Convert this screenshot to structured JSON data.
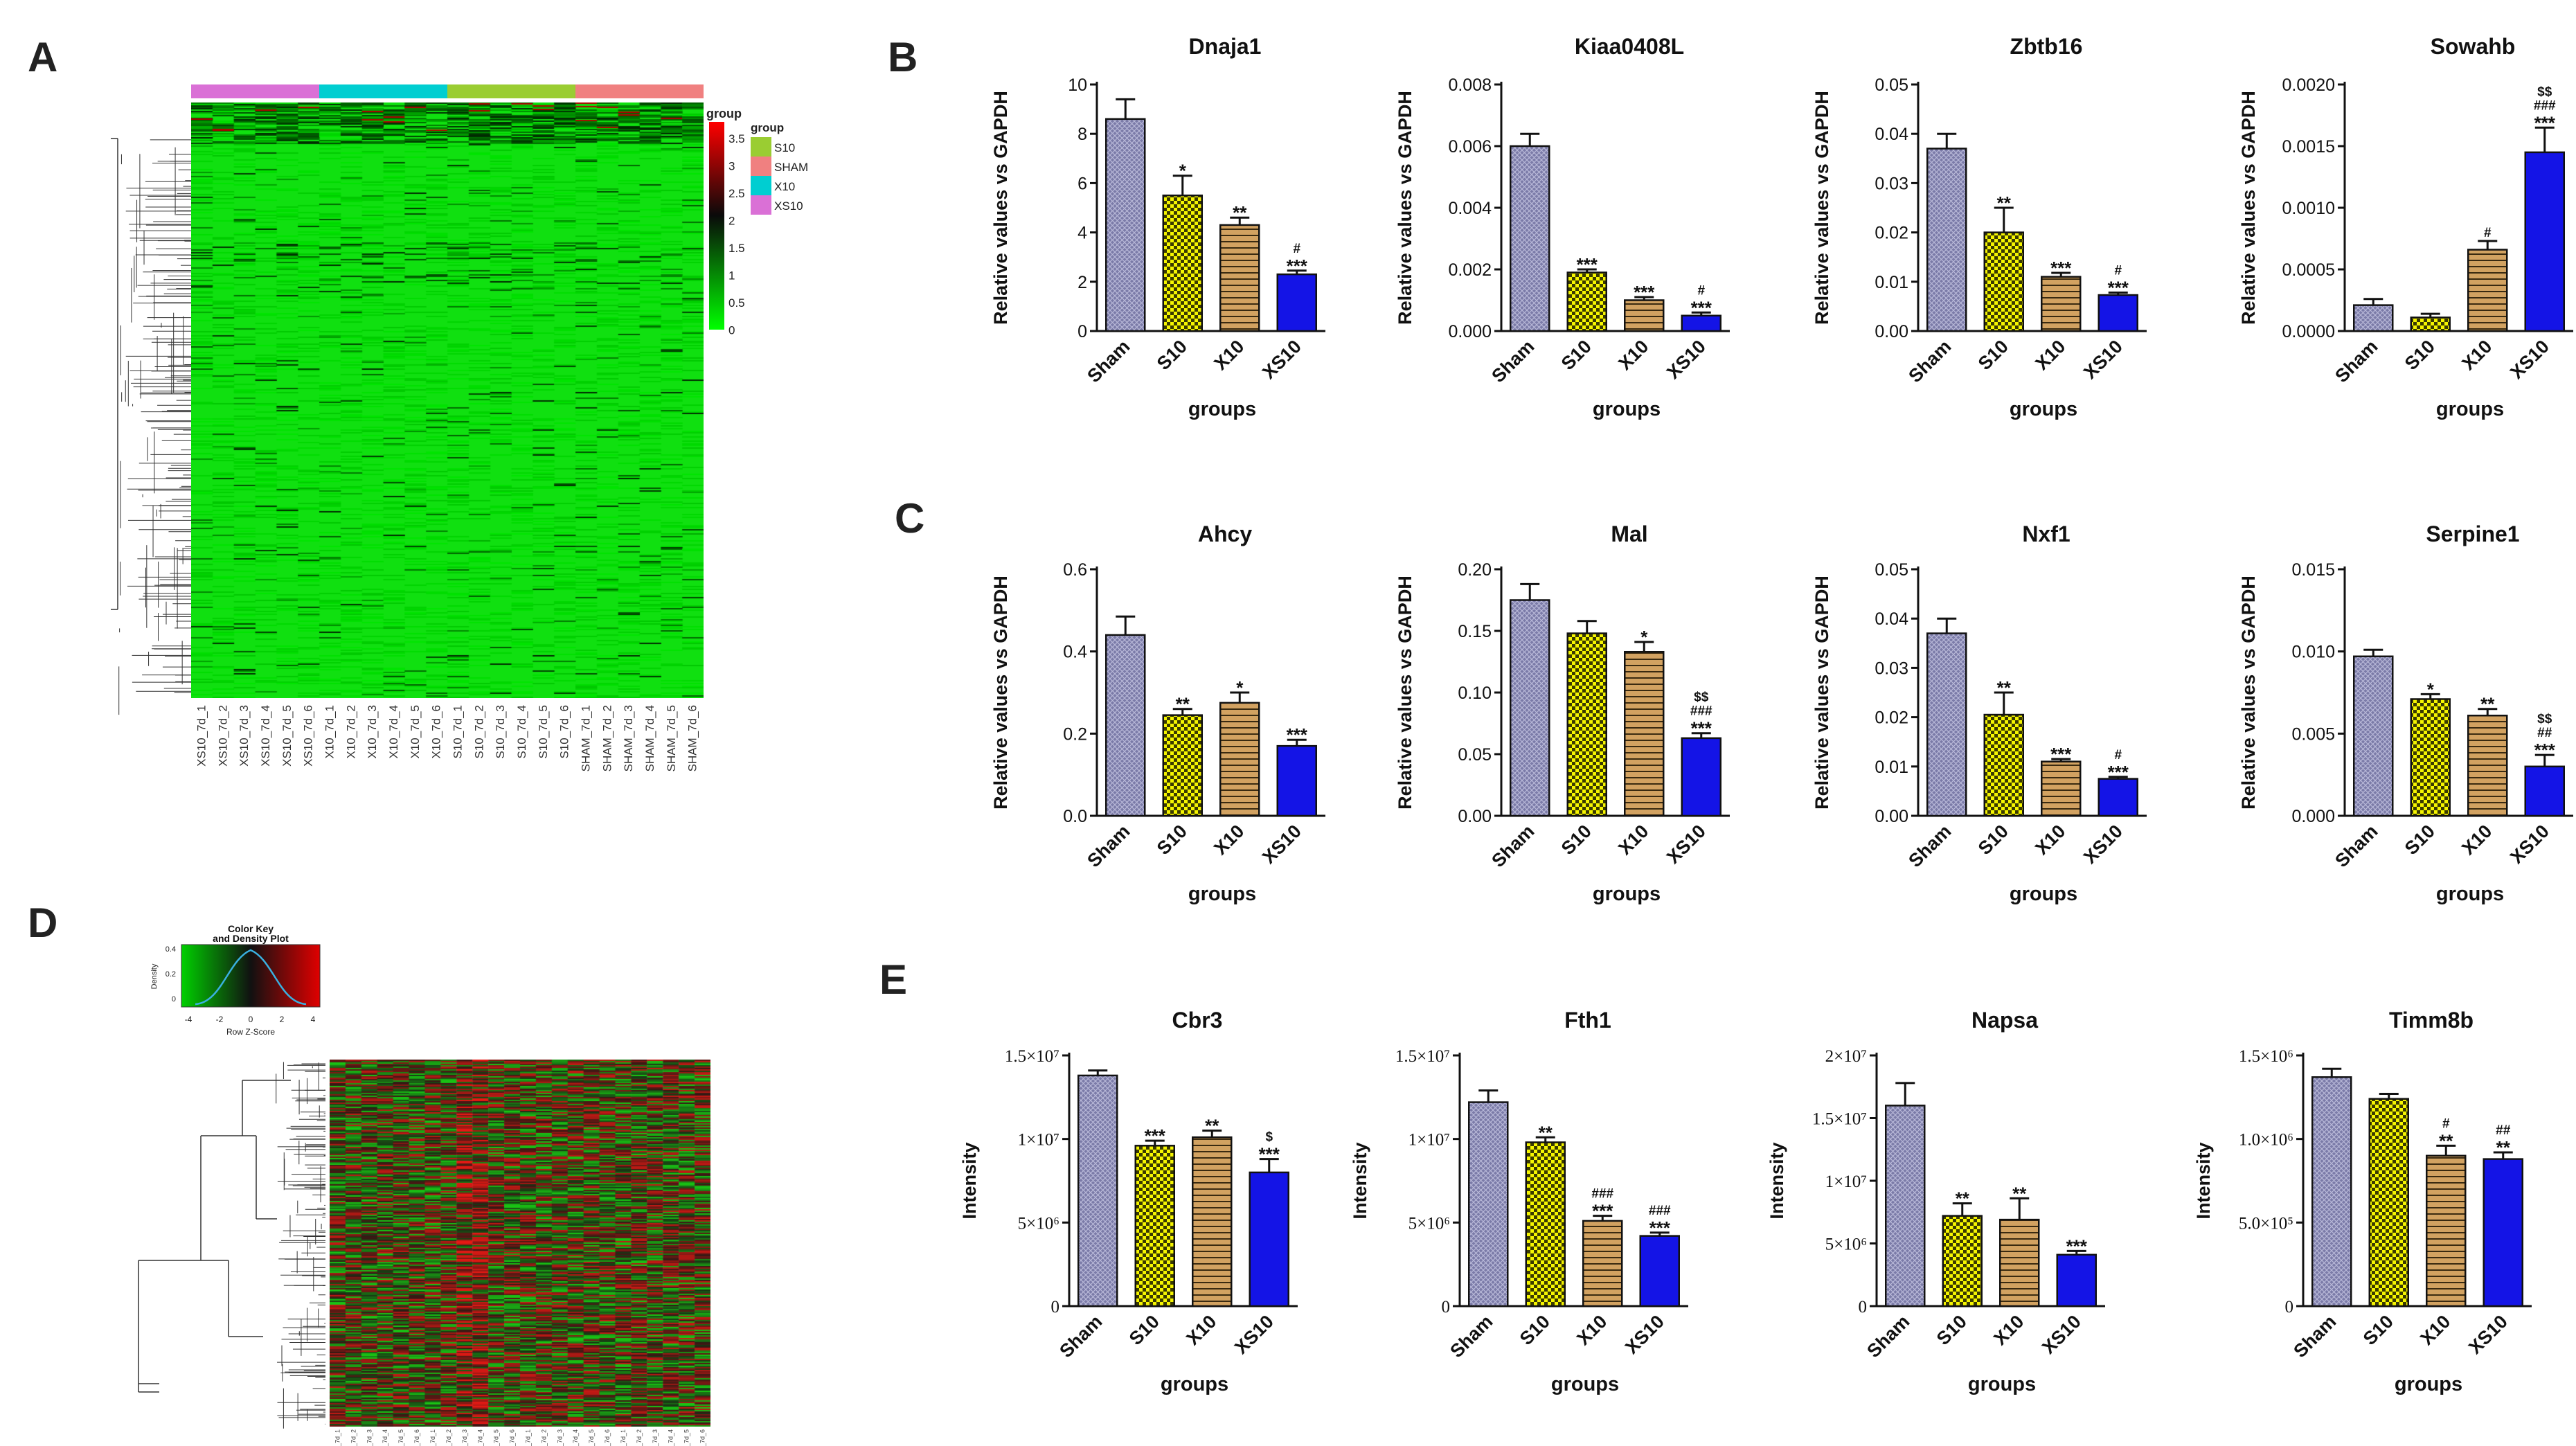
{
  "panels": {
    "A": "A",
    "B": "B",
    "C": "C",
    "D": "D",
    "E": "E"
  },
  "heatmap_a": {
    "legend_title": "group",
    "groups": [
      {
        "name": "S10",
        "color": "#9ACD32"
      },
      {
        "name": "SHAM",
        "color": "#F08080"
      },
      {
        "name": "X10",
        "color": "#00CED1"
      },
      {
        "name": "XS10",
        "color": "#DA70D6"
      }
    ],
    "top_bar_order": [
      "XS10",
      "X10",
      "S10",
      "SHAM"
    ],
    "scale_ticks": [
      "3.5",
      "3",
      "2.5",
      "2",
      "1.5",
      "1",
      "0.5",
      "0"
    ],
    "sample_labels": [
      "XS10_7d_1",
      "XS10_7d_2",
      "XS10_7d_3",
      "XS10_7d_4",
      "XS10_7d_5",
      "XS10_7d_6",
      "X10_7d_1",
      "X10_7d_2",
      "X10_7d_3",
      "X10_7d_4",
      "X10_7d_5",
      "X10_7d_6",
      "S10_7d_1",
      "S10_7d_2",
      "S10_7d_3",
      "S10_7d_4",
      "S10_7d_5",
      "S10_7d_6",
      "SHAM_7d_1",
      "SHAM_7d_2",
      "SHAM_7d_3",
      "SHAM_7d_4",
      "SHAM_7d_5",
      "SHAM_7d_6"
    ],
    "colors": {
      "low": "#00E000",
      "mid": "#101010",
      "high": "#E00000"
    }
  },
  "heatmap_d": {
    "key_title_1": "Color Key",
    "key_title_2": "and Density Plot",
    "key_xlabel": "Row Z-Score",
    "key_ylabel": "Density",
    "key_x_ticks": [
      "-4",
      "-2",
      "0",
      "2",
      "4"
    ],
    "key_y_ticks": [
      "0.4",
      "0.2",
      "0"
    ],
    "sample_labels": [
      "S10_7d_1",
      "S10_7d_2",
      "S10_7d_3",
      "S10_7d_4",
      "S10_7d_5",
      "S10_7d_6",
      "SHAM_7d_1",
      "SHAM_7d_2",
      "SHAM_7d_3",
      "SHAM_7d_4",
      "SHAM_7d_5",
      "SHAM_7d_6",
      "X10_7d_1",
      "X10_7d_2",
      "X10_7d_3",
      "X10_7d_4",
      "X10_7d_5",
      "X10_7d_6",
      "XS10_7d_1",
      "XS10_7d_2",
      "XS10_7d_3",
      "XS10_7d_4",
      "XS10_7d_5",
      "XS10_7d_6"
    ]
  },
  "chart_data": [
    {
      "panel": "B",
      "type": "bar",
      "title": "Dnaja1",
      "categories": [
        "Sham",
        "S10",
        "X10",
        "XS10"
      ],
      "values": [
        8.6,
        5.5,
        4.3,
        2.3
      ],
      "errors": [
        0.8,
        0.8,
        0.3,
        0.15
      ],
      "ylim": [
        0,
        10
      ],
      "yticks": [
        "0",
        "2",
        "4",
        "6",
        "8",
        "10"
      ],
      "ylabel": "Relative values vs GAPDH",
      "xlabel": "groups",
      "annotations": [
        [],
        [
          "*"
        ],
        [
          "**"
        ],
        [
          "***",
          "#"
        ]
      ]
    },
    {
      "panel": "B",
      "type": "bar",
      "title": "Kiaa0408L",
      "categories": [
        "Sham",
        "S10",
        "X10",
        "XS10"
      ],
      "values": [
        0.006,
        0.0019,
        0.001,
        0.0005
      ],
      "errors": [
        0.0004,
        0.0001,
        0.0001,
        0.0001
      ],
      "ylim": [
        0,
        0.008
      ],
      "yticks": [
        "0.000",
        "0.002",
        "0.004",
        "0.006",
        "0.008"
      ],
      "ylabel": "Relative values vs GAPDH",
      "xlabel": "groups",
      "annotations": [
        [],
        [
          "***"
        ],
        [
          "***"
        ],
        [
          "***",
          "#"
        ]
      ]
    },
    {
      "panel": "B",
      "type": "bar",
      "title": "Zbtb16",
      "categories": [
        "Sham",
        "S10",
        "X10",
        "XS10"
      ],
      "values": [
        0.037,
        0.02,
        0.011,
        0.0073
      ],
      "errors": [
        0.003,
        0.005,
        0.0008,
        0.0005
      ],
      "ylim": [
        0,
        0.05
      ],
      "yticks": [
        "0.00",
        "0.01",
        "0.02",
        "0.03",
        "0.04",
        "0.05"
      ],
      "ylabel": "Relative values vs GAPDH",
      "xlabel": "groups",
      "annotations": [
        [],
        [
          "**"
        ],
        [
          "***"
        ],
        [
          "***",
          "#"
        ]
      ]
    },
    {
      "panel": "B",
      "type": "bar",
      "title": "Sowahb",
      "categories": [
        "Sham",
        "S10",
        "X10",
        "XS10"
      ],
      "values": [
        0.00021,
        0.00011,
        0.00066,
        0.00145
      ],
      "errors": [
        5e-05,
        3e-05,
        7e-05,
        0.0002
      ],
      "ylim": [
        0,
        0.002
      ],
      "yticks": [
        "0.0000",
        "0.0005",
        "0.0010",
        "0.0015",
        "0.0020"
      ],
      "ylabel": "Relative values vs GAPDH",
      "xlabel": "groups",
      "annotations": [
        [],
        [],
        [
          "#"
        ],
        [
          "***",
          "###",
          "$$"
        ]
      ]
    },
    {
      "panel": "C",
      "type": "bar",
      "title": "Ahcy",
      "categories": [
        "Sham",
        "S10",
        "X10",
        "XS10"
      ],
      "values": [
        0.44,
        0.245,
        0.275,
        0.17
      ],
      "errors": [
        0.045,
        0.015,
        0.025,
        0.015
      ],
      "ylim": [
        0,
        0.6
      ],
      "yticks": [
        "0.0",
        "0.2",
        "0.4",
        "0.6"
      ],
      "ylabel": "Relative values vs GAPDH",
      "xlabel": "groups",
      "annotations": [
        [],
        [
          "**"
        ],
        [
          "*"
        ],
        [
          "***"
        ]
      ]
    },
    {
      "panel": "C",
      "type": "bar",
      "title": "Mal",
      "categories": [
        "Sham",
        "S10",
        "X10",
        "XS10"
      ],
      "values": [
        0.175,
        0.148,
        0.133,
        0.063
      ],
      "errors": [
        0.013,
        0.01,
        0.008,
        0.004
      ],
      "ylim": [
        0,
        0.2
      ],
      "yticks": [
        "0.00",
        "0.05",
        "0.10",
        "0.15",
        "0.20"
      ],
      "ylabel": "Relative values vs GAPDH",
      "xlabel": "groups",
      "annotations": [
        [],
        [],
        [
          "*"
        ],
        [
          "***",
          "###",
          "$$"
        ]
      ]
    },
    {
      "panel": "C",
      "type": "bar",
      "title": "Nxf1",
      "categories": [
        "Sham",
        "S10",
        "X10",
        "XS10"
      ],
      "values": [
        0.037,
        0.0205,
        0.011,
        0.0075
      ],
      "errors": [
        0.003,
        0.0045,
        0.0005,
        0.0004
      ],
      "ylim": [
        0,
        0.05
      ],
      "yticks": [
        "0.00",
        "0.01",
        "0.02",
        "0.03",
        "0.04",
        "0.05"
      ],
      "ylabel": "Relative values vs GAPDH",
      "xlabel": "groups",
      "annotations": [
        [],
        [
          "**"
        ],
        [
          "***"
        ],
        [
          "***",
          "#"
        ]
      ]
    },
    {
      "panel": "C",
      "type": "bar",
      "title": "Serpine1",
      "categories": [
        "Sham",
        "S10",
        "X10",
        "XS10"
      ],
      "values": [
        0.0097,
        0.0071,
        0.0061,
        0.003
      ],
      "errors": [
        0.0004,
        0.0003,
        0.0004,
        0.0007
      ],
      "ylim": [
        0,
        0.015
      ],
      "yticks": [
        "0.000",
        "0.005",
        "0.010",
        "0.015"
      ],
      "ylabel": "Relative values vs GAPDH",
      "xlabel": "groups",
      "annotations": [
        [],
        [
          "*"
        ],
        [
          "**"
        ],
        [
          "***",
          "##",
          "$$"
        ]
      ]
    },
    {
      "panel": "E",
      "type": "bar",
      "title": "Cbr3",
      "categories": [
        "Sham",
        "S10",
        "X10",
        "XS10"
      ],
      "values": [
        13800000,
        9600000,
        10100000,
        8000000
      ],
      "errors": [
        300000,
        300000,
        400000,
        800000
      ],
      "ylim": [
        0,
        15000000
      ],
      "yticks": [
        "0",
        "5×10⁶",
        "1×10⁷",
        "1.5×10⁷"
      ],
      "ytick_values": [
        0,
        5000000,
        10000000,
        15000000
      ],
      "ylabel": "Intensity",
      "xlabel": "groups",
      "annotations": [
        [],
        [
          "***"
        ],
        [
          "**"
        ],
        [
          "***",
          "$"
        ]
      ]
    },
    {
      "panel": "E",
      "type": "bar",
      "title": "Fth1",
      "categories": [
        "Sham",
        "S10",
        "X10",
        "XS10"
      ],
      "values": [
        12200000,
        9800000,
        5100000,
        4200000
      ],
      "errors": [
        700000,
        300000,
        300000,
        200000
      ],
      "ylim": [
        0,
        15000000
      ],
      "yticks": [
        "0",
        "5×10⁶",
        "1×10⁷",
        "1.5×10⁷"
      ],
      "ytick_values": [
        0,
        5000000,
        10000000,
        15000000
      ],
      "ylabel": "Intensity",
      "xlabel": "groups",
      "annotations": [
        [],
        [
          "**"
        ],
        [
          "***",
          "###"
        ],
        [
          "***",
          "###"
        ]
      ]
    },
    {
      "panel": "E",
      "type": "bar",
      "title": "Napsa",
      "categories": [
        "Sham",
        "S10",
        "X10",
        "XS10"
      ],
      "values": [
        16000000,
        7200000,
        6900000,
        4100000
      ],
      "errors": [
        1800000,
        1000000,
        1700000,
        300000
      ],
      "ylim": [
        0,
        20000000
      ],
      "yticks": [
        "0",
        "5×10⁶",
        "1×10⁷",
        "1.5×10⁷",
        "2×10⁷"
      ],
      "ytick_values": [
        0,
        5000000,
        10000000,
        15000000,
        20000000
      ],
      "ylabel": "Intensity",
      "xlabel": "groups",
      "annotations": [
        [],
        [
          "**"
        ],
        [
          "**"
        ],
        [
          "***"
        ]
      ]
    },
    {
      "panel": "E",
      "type": "bar",
      "title": "Timm8b",
      "categories": [
        "Sham",
        "S10",
        "X10",
        "XS10"
      ],
      "values": [
        1370000,
        1240000,
        900000,
        880000
      ],
      "errors": [
        50000,
        30000,
        60000,
        40000
      ],
      "ylim": [
        0,
        1500000
      ],
      "yticks": [
        "0",
        "5.0×10⁵",
        "1.0×10⁶",
        "1.5×10⁶"
      ],
      "ytick_values": [
        0,
        500000,
        1000000,
        1500000
      ],
      "ylabel": "Intensity",
      "xlabel": "groups",
      "annotations": [
        [],
        [],
        [
          "**",
          "#"
        ],
        [
          "**",
          "##"
        ]
      ]
    }
  ],
  "bar_styles": {
    "Sham": {
      "fill": "#7B7BA8",
      "pattern": "grid"
    },
    "S10": {
      "fill": "#F5F500",
      "pattern": "check"
    },
    "X10": {
      "fill": "#D2A261",
      "pattern": "hlines"
    },
    "XS10": {
      "fill": "#1414E6",
      "pattern": "solid"
    }
  }
}
